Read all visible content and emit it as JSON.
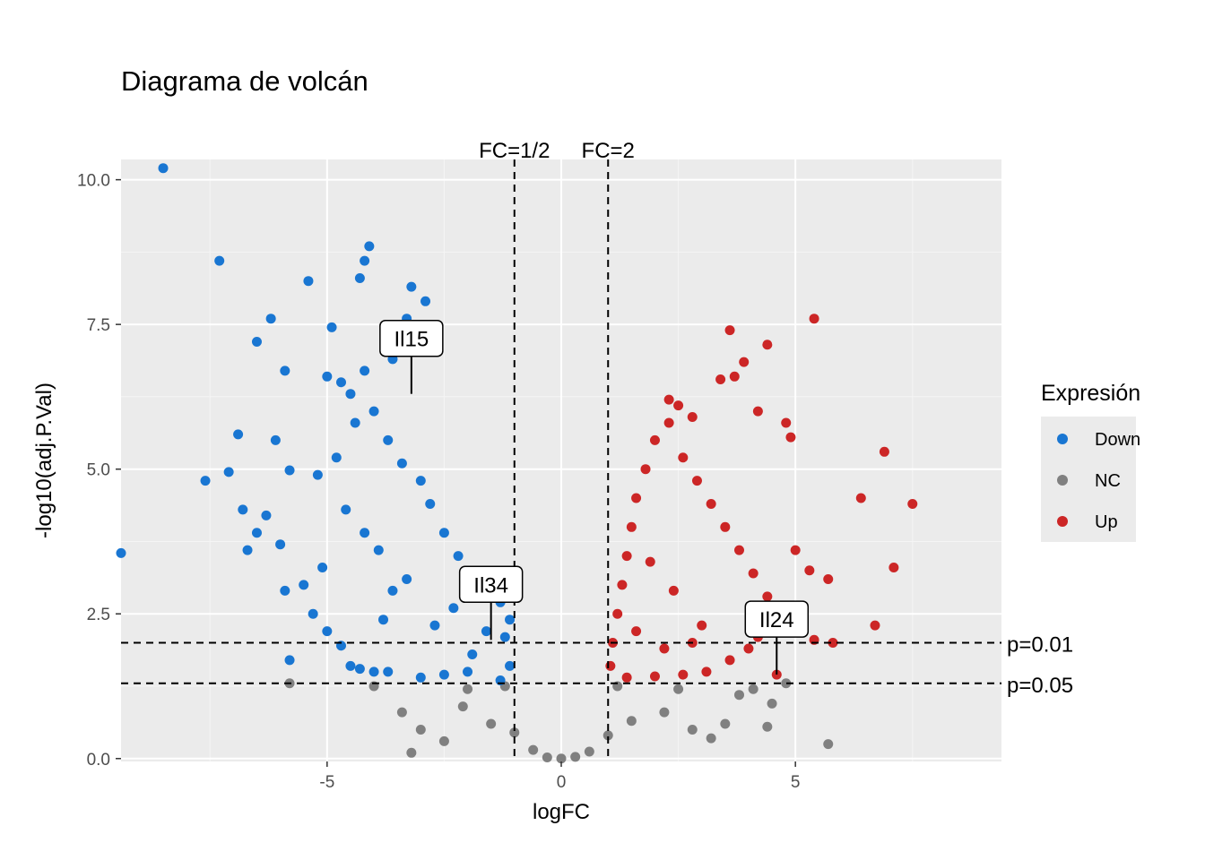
{
  "chart_data": {
    "type": "scatter",
    "title": "Diagrama de volcán",
    "xlabel": "logFC",
    "ylabel": "-log10(adj.P.Val)",
    "xlim": [
      -9.4,
      9.4
    ],
    "ylim": [
      -0.05,
      10.35
    ],
    "xticks": [
      {
        "value": -5,
        "label": "-5"
      },
      {
        "value": 0,
        "label": "0"
      },
      {
        "value": 5,
        "label": "5"
      }
    ],
    "yticks": [
      {
        "value": 0,
        "label": "0.0"
      },
      {
        "value": 2.5,
        "label": "2.5"
      },
      {
        "value": 5,
        "label": "5.0"
      },
      {
        "value": 7.5,
        "label": "7.5"
      },
      {
        "value": 10,
        "label": "10.0"
      }
    ],
    "grid": true,
    "legend": {
      "title": "Expresión",
      "position": "right",
      "entries": [
        {
          "key": "Down",
          "label": "Down",
          "color": "#1976d2"
        },
        {
          "key": "NC",
          "label": "NC",
          "color": "#808080"
        },
        {
          "key": "Up",
          "label": "Up",
          "color": "#cc2626"
        }
      ]
    },
    "reference_lines": [
      {
        "axis": "x",
        "value": -1,
        "label": "FC=1/2"
      },
      {
        "axis": "x",
        "value": 1,
        "label": "FC=2"
      },
      {
        "axis": "y",
        "value": 2,
        "label": "p=0.01"
      },
      {
        "axis": "y",
        "value": 1.3,
        "label": "p=0.05"
      }
    ],
    "annotations": [
      {
        "label": "Il15",
        "x": -3.2,
        "y": 6.3
      },
      {
        "label": "Il34",
        "x": -1.5,
        "y": 2.05
      },
      {
        "label": "Il24",
        "x": 4.6,
        "y": 1.45
      }
    ],
    "series": [
      {
        "name": "Down",
        "color": "#1976d2",
        "points": [
          [
            -8.5,
            10.2
          ],
          [
            -9.4,
            3.55
          ],
          [
            -7.3,
            8.6
          ],
          [
            -7.6,
            4.8
          ],
          [
            -7.1,
            4.95
          ],
          [
            -6.9,
            5.6
          ],
          [
            -6.5,
            7.2
          ],
          [
            -6.2,
            7.6
          ],
          [
            -5.9,
            6.7
          ],
          [
            -6.1,
            5.5
          ],
          [
            -5.8,
            4.98
          ],
          [
            -5.4,
            8.25
          ],
          [
            -4.1,
            8.85
          ],
          [
            -4.2,
            8.6
          ],
          [
            -4.3,
            8.3
          ],
          [
            -3.2,
            8.15
          ],
          [
            -2.9,
            7.9
          ],
          [
            -3.3,
            7.6
          ],
          [
            -4.9,
            7.45
          ],
          [
            -3.6,
            6.9
          ],
          [
            -4.2,
            6.7
          ],
          [
            -5.0,
            6.6
          ],
          [
            -4.7,
            6.5
          ],
          [
            -4.5,
            6.3
          ],
          [
            -5.2,
            4.9
          ],
          [
            -6.3,
            4.2
          ],
          [
            -6.8,
            4.3
          ],
          [
            -6.7,
            3.6
          ],
          [
            -6.5,
            3.9
          ],
          [
            -6.0,
            3.7
          ],
          [
            -5.9,
            2.9
          ],
          [
            -5.8,
            1.7
          ],
          [
            -5.5,
            3.0
          ],
          [
            -5.3,
            2.5
          ],
          [
            -5.1,
            3.3
          ],
          [
            -5.0,
            2.2
          ],
          [
            -4.7,
            1.95
          ],
          [
            -4.5,
            1.6
          ],
          [
            -4.3,
            1.55
          ],
          [
            -4.0,
            1.5
          ],
          [
            -3.8,
            2.4
          ],
          [
            -3.7,
            1.5
          ],
          [
            -3.0,
            1.4
          ],
          [
            -2.5,
            1.45
          ],
          [
            -2.0,
            1.5
          ],
          [
            -1.3,
            1.35
          ],
          [
            -1.1,
            1.6
          ],
          [
            -1.2,
            2.1
          ],
          [
            -1.6,
            2.2
          ],
          [
            -1.9,
            1.8
          ],
          [
            -2.3,
            2.6
          ],
          [
            -2.7,
            2.3
          ],
          [
            -3.3,
            3.1
          ],
          [
            -3.6,
            2.9
          ],
          [
            -3.9,
            3.6
          ],
          [
            -4.2,
            3.9
          ],
          [
            -4.6,
            4.3
          ],
          [
            -4.8,
            5.2
          ],
          [
            -4.4,
            5.8
          ],
          [
            -4.0,
            6.0
          ],
          [
            -3.7,
            5.5
          ],
          [
            -3.4,
            5.1
          ],
          [
            -3.0,
            4.8
          ],
          [
            -2.8,
            4.4
          ],
          [
            -2.5,
            3.9
          ],
          [
            -2.2,
            3.5
          ],
          [
            -1.9,
            3.2
          ],
          [
            -1.6,
            3.0
          ],
          [
            -1.3,
            2.7
          ],
          [
            -1.1,
            2.4
          ]
        ]
      },
      {
        "name": "Up",
        "color": "#cc2626",
        "points": [
          [
            5.4,
            7.6
          ],
          [
            3.6,
            7.4
          ],
          [
            4.4,
            7.15
          ],
          [
            3.9,
            6.85
          ],
          [
            3.7,
            6.6
          ],
          [
            3.4,
            6.55
          ],
          [
            2.3,
            6.2
          ],
          [
            2.5,
            6.1
          ],
          [
            4.2,
            6.0
          ],
          [
            4.8,
            5.8
          ],
          [
            4.9,
            5.55
          ],
          [
            2.8,
            5.9
          ],
          [
            6.9,
            5.3
          ],
          [
            6.4,
            4.5
          ],
          [
            7.5,
            4.4
          ],
          [
            5.0,
            3.6
          ],
          [
            5.3,
            3.25
          ],
          [
            5.7,
            3.1
          ],
          [
            7.1,
            3.3
          ],
          [
            6.7,
            2.3
          ],
          [
            5.8,
            2.0
          ],
          [
            5.4,
            2.05
          ],
          [
            4.6,
            1.45
          ],
          [
            4.2,
            2.1
          ],
          [
            4.0,
            1.9
          ],
          [
            3.6,
            1.7
          ],
          [
            3.1,
            1.5
          ],
          [
            2.6,
            1.45
          ],
          [
            2.0,
            1.42
          ],
          [
            1.4,
            1.4
          ],
          [
            1.05,
            1.6
          ],
          [
            1.1,
            2.0
          ],
          [
            1.2,
            2.5
          ],
          [
            1.3,
            3.0
          ],
          [
            1.4,
            3.5
          ],
          [
            1.5,
            4.0
          ],
          [
            1.6,
            4.5
          ],
          [
            1.8,
            5.0
          ],
          [
            2.0,
            5.5
          ],
          [
            2.3,
            5.8
          ],
          [
            2.6,
            5.2
          ],
          [
            2.9,
            4.8
          ],
          [
            3.2,
            4.4
          ],
          [
            3.5,
            4.0
          ],
          [
            3.8,
            3.6
          ],
          [
            4.1,
            3.2
          ],
          [
            4.4,
            2.8
          ],
          [
            4.7,
            2.5
          ],
          [
            3.0,
            2.3
          ],
          [
            2.4,
            2.9
          ],
          [
            1.9,
            3.4
          ],
          [
            1.6,
            2.2
          ],
          [
            2.2,
            1.9
          ],
          [
            2.8,
            2.0
          ]
        ]
      },
      {
        "name": "NC",
        "color": "#808080",
        "points": [
          [
            -5.8,
            1.3
          ],
          [
            -3.4,
            0.8
          ],
          [
            -3.2,
            0.1
          ],
          [
            -3.0,
            0.5
          ],
          [
            -2.5,
            0.3
          ],
          [
            -2.1,
            0.9
          ],
          [
            -1.5,
            0.6
          ],
          [
            -1.0,
            0.45
          ],
          [
            -0.6,
            0.15
          ],
          [
            -0.3,
            0.02
          ],
          [
            0.0,
            0.0
          ],
          [
            0.3,
            0.03
          ],
          [
            0.6,
            0.12
          ],
          [
            1.0,
            0.4
          ],
          [
            1.5,
            0.65
          ],
          [
            2.2,
            0.8
          ],
          [
            2.8,
            0.5
          ],
          [
            3.2,
            0.35
          ],
          [
            3.5,
            0.6
          ],
          [
            3.8,
            1.1
          ],
          [
            4.1,
            1.2
          ],
          [
            4.5,
            0.95
          ],
          [
            4.4,
            0.55
          ],
          [
            5.7,
            0.25
          ],
          [
            -2.0,
            1.2
          ],
          [
            -1.2,
            1.25
          ],
          [
            1.2,
            1.25
          ],
          [
            2.5,
            1.2
          ],
          [
            -4.0,
            1.25
          ],
          [
            4.8,
            1.3
          ]
        ]
      }
    ]
  }
}
